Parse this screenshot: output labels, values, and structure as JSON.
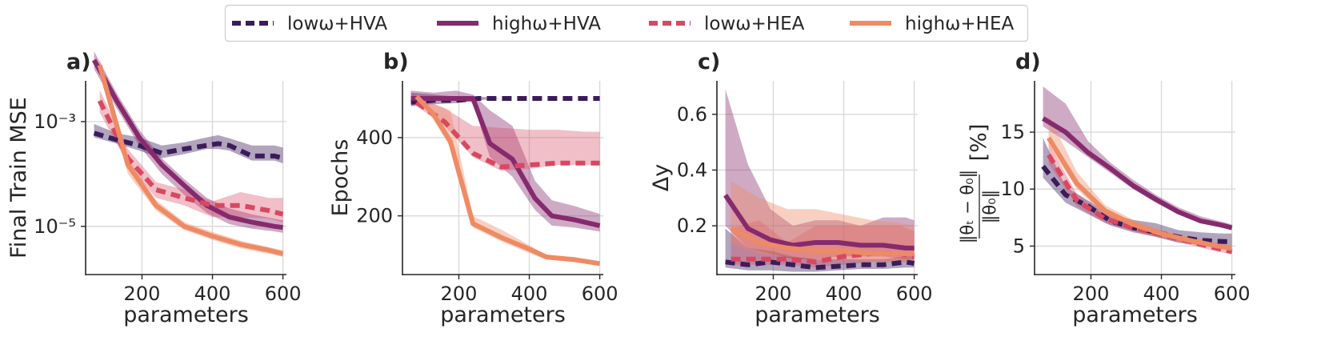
{
  "legend": {
    "entries": [
      {
        "label": "lowω+HVA",
        "color": "#3b1c5a",
        "dashed": true
      },
      {
        "label": "highω+HVA",
        "color": "#862a6e",
        "dashed": false
      },
      {
        "label": "lowω+HEA",
        "color": "#d84860",
        "dashed": true
      },
      {
        "label": "highω+HEA",
        "color": "#ee8a64",
        "dashed": false
      }
    ]
  },
  "chart_data": [
    {
      "panel": "a)",
      "type": "line",
      "ylabel": "Final Train MSE",
      "xlabel": "parameters",
      "yscale": "log",
      "xlim": [
        40,
        610
      ],
      "ylim": [
        1.2e-06,
        0.006
      ],
      "xticks": [
        200,
        400,
        600
      ],
      "xtick_labels": [
        "200",
        "400",
        "600"
      ],
      "yticks": [
        0.001,
        1e-05
      ],
      "ytick_labels": [
        "10⁻³",
        "10⁻⁵"
      ],
      "series": [
        {
          "name": "lowω+HVA",
          "x": [
            64,
            128,
            192,
            256,
            320,
            384,
            416,
            448,
            512,
            576,
            600
          ],
          "y": [
            0.0006,
            0.00045,
            0.00035,
            0.00025,
            0.0003,
            0.00035,
            0.00038,
            0.00035,
            0.00022,
            0.00022,
            0.0002
          ],
          "lo": [
            0.0005,
            0.00038,
            0.00028,
            0.0002,
            0.00024,
            0.0003,
            0.0003,
            0.00028,
            0.00018,
            0.00018,
            0.00016
          ],
          "hi": [
            0.0009,
            0.0006,
            0.0005,
            0.00035,
            0.0004,
            0.0005,
            0.00055,
            0.00048,
            0.00035,
            0.00035,
            0.00032
          ]
        },
        {
          "name": "highω+HVA",
          "x": [
            64,
            128,
            192,
            256,
            320,
            384,
            448,
            512,
            576,
            600
          ],
          "y": [
            0.015,
            0.0025,
            0.0005,
            0.00015,
            6e-05,
            2.5e-05,
            1.5e-05,
            1.2e-05,
            1e-05,
            9.5e-06
          ],
          "lo": [
            0.01,
            0.0018,
            0.00035,
            0.0001,
            4e-05,
            1.8e-05,
            1.1e-05,
            9e-06,
            8e-06,
            7.5e-06
          ],
          "hi": [
            0.022,
            0.0035,
            0.0007,
            0.0002,
            8e-05,
            3.5e-05,
            2.2e-05,
            1.7e-05,
            1.4e-05,
            1.3e-05
          ]
        },
        {
          "name": "lowω+HEA",
          "x": [
            80,
            160,
            240,
            320,
            400,
            480,
            560,
            600
          ],
          "y": [
            0.0025,
            0.0002,
            5e-05,
            3.5e-05,
            2.5e-05,
            2.5e-05,
            2e-05,
            1.7e-05
          ],
          "lo": [
            0.0015,
            0.00015,
            3.5e-05,
            2.5e-05,
            1.5e-05,
            1.5e-05,
            1.4e-05,
            1.2e-05
          ],
          "hi": [
            0.004,
            0.0003,
            7e-05,
            5e-05,
            3e-05,
            4.5e-05,
            3.5e-05,
            3.5e-05
          ]
        },
        {
          "name": "highω+HEA",
          "x": [
            80,
            160,
            240,
            320,
            400,
            480,
            560,
            600
          ],
          "y": [
            0.012,
            0.00015,
            2.5e-05,
            1e-05,
            6.5e-06,
            4.5e-06,
            3.5e-06,
            3e-06
          ],
          "lo": [
            0.008,
            0.0001,
            2e-05,
            8.5e-06,
            5.5e-06,
            3.8e-06,
            3e-06,
            2.6e-06
          ],
          "hi": [
            0.016,
            0.0002,
            3.2e-05,
            1.2e-05,
            7.8e-06,
            5.3e-06,
            4e-06,
            3.5e-06
          ]
        }
      ]
    },
    {
      "panel": "b)",
      "type": "line",
      "ylabel": "Epochs",
      "xlabel": "parameters",
      "yscale": "linear",
      "xlim": [
        40,
        610
      ],
      "ylim": [
        50,
        545
      ],
      "xticks": [
        200,
        400,
        600
      ],
      "xtick_labels": [
        "200",
        "400",
        "600"
      ],
      "yticks": [
        200,
        400
      ],
      "ytick_labels": [
        "200",
        "400"
      ],
      "series": [
        {
          "name": "lowω+HVA",
          "x": [
            64,
            128,
            192,
            256,
            320,
            384,
            448,
            512,
            576,
            600
          ],
          "y": [
            490,
            495,
            495,
            500,
            500,
            500,
            500,
            500,
            500,
            500
          ],
          "lo": [
            480,
            485,
            488,
            495,
            500,
            500,
            500,
            500,
            500,
            500
          ],
          "hi": [
            515,
            510,
            505,
            505,
            500,
            500,
            500,
            500,
            500,
            500
          ]
        },
        {
          "name": "highω+HVA",
          "x": [
            64,
            128,
            192,
            240,
            288,
            352,
            416,
            464,
            528,
            600
          ],
          "y": [
            500,
            500,
            500,
            500,
            385,
            345,
            245,
            200,
            190,
            175
          ],
          "lo": [
            495,
            495,
            495,
            490,
            350,
            300,
            215,
            175,
            170,
            160
          ],
          "hi": [
            520,
            515,
            520,
            510,
            470,
            430,
            290,
            240,
            225,
            205
          ]
        },
        {
          "name": "lowω+HEA",
          "x": [
            80,
            160,
            240,
            320,
            400,
            480,
            560,
            600
          ],
          "y": [
            490,
            440,
            360,
            325,
            330,
            335,
            335,
            335
          ],
          "lo": [
            480,
            430,
            350,
            315,
            320,
            330,
            330,
            330
          ],
          "hi": [
            505,
            475,
            430,
            425,
            420,
            420,
            415,
            415
          ]
        },
        {
          "name": "highω+HEA",
          "x": [
            80,
            128,
            176,
            240,
            320,
            400,
            448,
            528,
            600
          ],
          "y": [
            505,
            460,
            390,
            180,
            145,
            115,
            95,
            88,
            78
          ],
          "lo": [
            500,
            445,
            375,
            170,
            135,
            105,
            88,
            82,
            73
          ],
          "hi": [
            510,
            485,
            470,
            200,
            165,
            125,
            100,
            92,
            82
          ]
        }
      ]
    },
    {
      "panel": "c)",
      "type": "line",
      "ylabel": "Δy",
      "xlabel": "parameters",
      "yscale": "linear",
      "xlim": [
        40,
        610
      ],
      "ylim": [
        0.025,
        0.72
      ],
      "xticks": [
        200,
        400,
        600
      ],
      "xtick_labels": [
        "200",
        "400",
        "600"
      ],
      "yticks": [
        0.2,
        0.4,
        0.6
      ],
      "ytick_labels": [
        "0.2",
        "0.4",
        "0.6"
      ],
      "series": [
        {
          "name": "lowω+HVA",
          "x": [
            64,
            128,
            192,
            256,
            320,
            384,
            448,
            512,
            576,
            600
          ],
          "y": [
            0.07,
            0.06,
            0.07,
            0.06,
            0.05,
            0.055,
            0.06,
            0.06,
            0.07,
            0.065
          ],
          "lo": [
            0.05,
            0.04,
            0.04,
            0.035,
            0.035,
            0.04,
            0.045,
            0.045,
            0.05,
            0.05
          ],
          "hi": [
            0.19,
            0.12,
            0.11,
            0.09,
            0.08,
            0.08,
            0.08,
            0.08,
            0.09,
            0.09
          ]
        },
        {
          "name": "highω+HVA",
          "x": [
            64,
            128,
            192,
            256,
            320,
            384,
            448,
            512,
            576,
            600
          ],
          "y": [
            0.31,
            0.19,
            0.15,
            0.13,
            0.14,
            0.14,
            0.13,
            0.13,
            0.12,
            0.12
          ],
          "lo": [
            0.2,
            0.12,
            0.1,
            0.08,
            0.08,
            0.09,
            0.09,
            0.09,
            0.08,
            0.08
          ],
          "hi": [
            0.69,
            0.42,
            0.26,
            0.2,
            0.22,
            0.22,
            0.2,
            0.23,
            0.23,
            0.22
          ]
        },
        {
          "name": "lowω+HEA",
          "x": [
            80,
            160,
            240,
            320,
            400,
            480,
            560,
            600
          ],
          "y": [
            0.08,
            0.08,
            0.08,
            0.07,
            0.09,
            0.1,
            0.1,
            0.09
          ],
          "lo": [
            0.06,
            0.06,
            0.06,
            0.05,
            0.06,
            0.07,
            0.07,
            0.07
          ],
          "hi": [
            0.19,
            0.22,
            0.14,
            0.2,
            0.2,
            0.2,
            0.2,
            0.18
          ]
        },
        {
          "name": "highω+HEA",
          "x": [
            80,
            160,
            240,
            320,
            400,
            480,
            560,
            600
          ],
          "y": [
            0.19,
            0.14,
            0.12,
            0.11,
            0.11,
            0.1,
            0.1,
            0.1
          ],
          "lo": [
            0.14,
            0.1,
            0.09,
            0.08,
            0.08,
            0.07,
            0.07,
            0.07
          ],
          "hi": [
            0.36,
            0.3,
            0.26,
            0.26,
            0.24,
            0.22,
            0.21,
            0.2
          ]
        }
      ]
    },
    {
      "panel": "d)",
      "type": "line",
      "ylabel": "‖θₜ − θ₀‖ / ‖θ₀‖   [%]",
      "ylabel_num": "‖θₜ − θ₀‖",
      "ylabel_den": "‖θ₀‖",
      "ylabel_unit": "[%]",
      "xlabel": "parameters",
      "yscale": "linear",
      "xlim": [
        40,
        610
      ],
      "ylim": [
        2.5,
        19.5
      ],
      "xticks": [
        200,
        400,
        600
      ],
      "xtick_labels": [
        "200",
        "400",
        "600"
      ],
      "yticks": [
        5,
        10,
        15
      ],
      "ytick_labels": [
        "5",
        "10",
        "15"
      ],
      "series": [
        {
          "name": "lowω+HVA",
          "x": [
            64,
            128,
            192,
            256,
            320,
            384,
            448,
            512,
            576,
            600
          ],
          "y": [
            12,
            9.5,
            8.5,
            7.2,
            6.6,
            6.2,
            5.8,
            5.5,
            5.4,
            5.4
          ],
          "lo": [
            11,
            8.8,
            7.8,
            6.8,
            6.2,
            5.8,
            5.3,
            5.1,
            5,
            5
          ],
          "hi": [
            14.5,
            10.2,
            9,
            7.8,
            7.3,
            7,
            6.4,
            6.2,
            6.1,
            6.1
          ]
        },
        {
          "name": "highω+HVA",
          "x": [
            64,
            128,
            192,
            256,
            320,
            384,
            448,
            512,
            576,
            600
          ],
          "y": [
            16.2,
            15,
            13.2,
            11.8,
            10.3,
            9.1,
            8,
            7.2,
            6.8,
            6.6
          ],
          "lo": [
            15.5,
            14.2,
            12.8,
            11.4,
            10,
            8.8,
            7.8,
            7,
            6.6,
            6.4
          ],
          "hi": [
            19,
            17.5,
            14.2,
            12.3,
            10.8,
            9.5,
            8.4,
            7.6,
            7.1,
            6.9
          ]
        },
        {
          "name": "lowω+HEA",
          "x": [
            80,
            160,
            240,
            320,
            400,
            480,
            560,
            600
          ],
          "y": [
            13,
            9,
            7.4,
            6.6,
            6,
            5.4,
            4.8,
            4.5
          ],
          "lo": [
            12.2,
            8.5,
            7,
            6.3,
            5.7,
            5.1,
            4.5,
            4.3
          ],
          "hi": [
            14,
            9.6,
            7.8,
            7,
            6.3,
            5.7,
            5.1,
            4.8
          ]
        },
        {
          "name": "highω+HEA",
          "x": [
            80,
            160,
            240,
            320,
            400,
            480,
            560,
            600
          ],
          "y": [
            14.5,
            10.5,
            8.1,
            6.9,
            6.1,
            5.5,
            5,
            4.8
          ],
          "lo": [
            13.8,
            10,
            7.7,
            6.6,
            5.8,
            5.2,
            4.8,
            4.6
          ],
          "hi": [
            16.5,
            11.5,
            8.6,
            7.3,
            6.4,
            5.8,
            5.3,
            5.1
          ]
        }
      ]
    }
  ]
}
